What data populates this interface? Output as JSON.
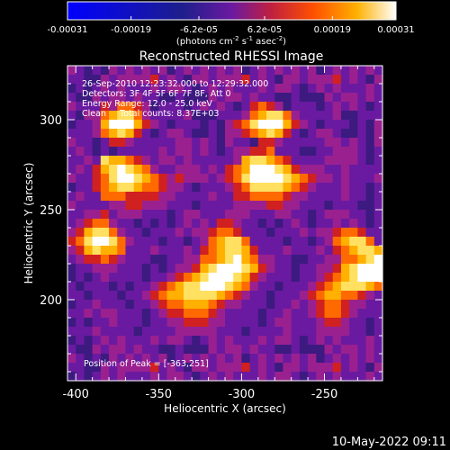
{
  "title": "Reconstructed RHESSI Image",
  "colorbar": {
    "ticks": [
      "-0.00031",
      "-0.00019",
      "-6.2e-05",
      "6.2e-05",
      "0.00019",
      "0.00031"
    ],
    "tick_values": [
      -0.00031,
      -0.00019,
      -6.2e-05,
      6.2e-05,
      0.00019,
      0.00031
    ],
    "range": [
      -0.00031,
      0.00031
    ],
    "unit_parts": [
      "(photons cm",
      "-2",
      " s",
      "-1",
      " asec",
      "-2",
      ")"
    ]
  },
  "annotations": {
    "time_range": "26-Sep-2010 12:23:32.000 to 12:29:32.000",
    "detectors": "Detectors: 3F 4F 5F 6F 7F 8F, Att 0",
    "energy": "Energy Range: 12.0 - 25.0 keV",
    "method": "Clean     Total counts: 8.37E+03",
    "peak": "Position of Peak = [-363,251]"
  },
  "timestamp": "10-May-2022 09:11",
  "colors": {
    "background": "#000000",
    "text": "#ffffff",
    "colormap": [
      "#0000ff",
      "#1a1a80",
      "#3c1a80",
      "#6a1aa0",
      "#9a2090",
      "#d02020",
      "#ff6a00",
      "#ffb000",
      "#ffe060",
      "#ffffff"
    ]
  },
  "chart_data": {
    "type": "heatmap",
    "title": "Reconstructed RHESSI Image",
    "xlabel": "Heliocentric X (arcsec)",
    "ylabel": "Heliocentric Y (arcsec)",
    "xlim": [
      -405,
      -215
    ],
    "ylim": [
      155,
      330
    ],
    "x_ticks": [
      -400,
      -350,
      -300,
      -250
    ],
    "y_ticks": [
      200,
      250,
      300
    ],
    "x_tick_labels": [
      "-400",
      "-350",
      "-300",
      "-250"
    ],
    "y_tick_labels": [
      "200",
      "250",
      "300"
    ],
    "grid": false,
    "peak": [
      -363,
      251
    ],
    "grid_x_start": -405,
    "grid_y_top": 330,
    "cell_size": 5,
    "cols": 38,
    "rows": 35,
    "intensity_rows": [
      "43232434343423434343423434343423434343",
      "33224344445343244344453432443444534324",
      "23234343334344323434333434432343433343",
      "32243443433223222434434332232224344343",
      "43335466542333234343235654233323434323",
      "32446788643333422233346788643333422333",
      "23347999754323332324568999754323332324",
      "33346787532344322324456787532344322324",
      "43323554333334434324332554333334434324",
      "34323233333434434323445563332233444323",
      "33438776543443433333478876533334444323",
      "34357898764334443435679998754443343333",
      "43356899876545444345689999876544343334",
      "23356788766544323334568888765433343323",
      "34336665555443333433556666544333343323",
      "43333445544433323333444455443332333223",
      "33445344433323443334443334433234443323",
      "34566433232323434355433232343233434323",
      "45788643323334344566533323334344566533",
      "56899864333233234678863333233234678863",
      "45787763334333435678875333433343567887",
      "34556543332233446678976443322334466789",
      "23344433323234457899987543323344578999",
      "23234333323345678999875433323345678999",
      "32333232334567889998764332333456788876",
      "33233323345677888876543323334567766543",
      "23343332334566777654433323343456654433",
      "33434433323455666543333233433456654333",
      "23233433323344555443333234433345543323",
      "33343333233334444433323333433344443323",
      "23234343334344323434333434432343433343",
      "32243443433223222434434332232224344343",
      "43232434343423434343423434343423434343",
      "33224344445343244344453432443444534324",
      "23234343334344323434333434432343433343"
    ]
  }
}
